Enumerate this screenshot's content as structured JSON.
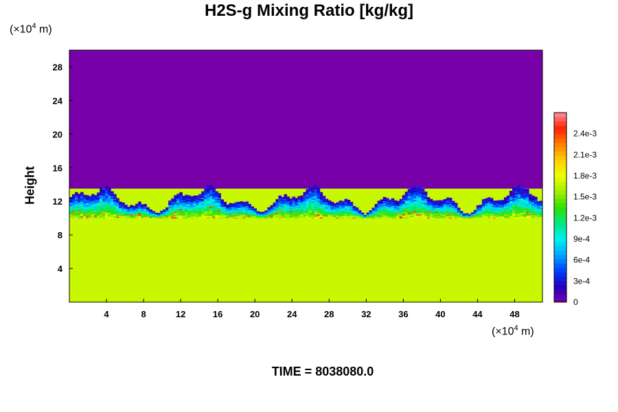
{
  "title": "H2S-g Mixing Ratio [kg/kg]",
  "time_label": "TIME =",
  "time_value": "8038080.0",
  "x_unit_prefix": "(×10",
  "x_unit_exp": "4",
  "x_unit_suffix": " m)",
  "y_unit_prefix": "(×10",
  "y_unit_exp": "4",
  "y_unit_suffix": " m)",
  "colors": {
    "background_field": "#7800a8",
    "lower_layer": "#dcff00",
    "frame": "#000000"
  },
  "chart_data": {
    "type": "heatmap",
    "title": "H2S-g Mixing Ratio [kg/kg]",
    "xlabel": "",
    "ylabel": "Height",
    "xlim": [
      0,
      51
    ],
    "ylim": [
      0,
      30
    ],
    "x_ticks": [
      "4",
      "8",
      "12",
      "16",
      "20",
      "24",
      "28",
      "32",
      "36",
      "40",
      "44",
      "48"
    ],
    "y_ticks": [
      "4",
      "8",
      "12",
      "16",
      "20",
      "24",
      "28"
    ],
    "colorbar": {
      "ticks": [
        "0",
        "3e-4",
        "6e-4",
        "9e-4",
        "1.2e-3",
        "1.5e-3",
        "1.8e-3",
        "2.1e-3",
        "2.4e-3"
      ],
      "vmin": 0,
      "vmax": 0.0027,
      "stops": [
        "#7800a8",
        "#2000c0",
        "#0040ff",
        "#00a8ff",
        "#00f0f0",
        "#00e880",
        "#30e000",
        "#a0f000",
        "#e8ff00",
        "#ffd000",
        "#ff8000",
        "#ff2000",
        "#ff90a0"
      ]
    },
    "regions": [
      {
        "name": "upper",
        "from_height": 13.5,
        "to_height": 30,
        "value": 0
      },
      {
        "name": "mixing-layer",
        "from_height": 11,
        "to_height": 13.5,
        "value_range": [
          0.0002,
          0.0024
        ]
      },
      {
        "name": "lower",
        "from_height": 0,
        "to_height": 11,
        "value": 0.0017
      }
    ]
  }
}
